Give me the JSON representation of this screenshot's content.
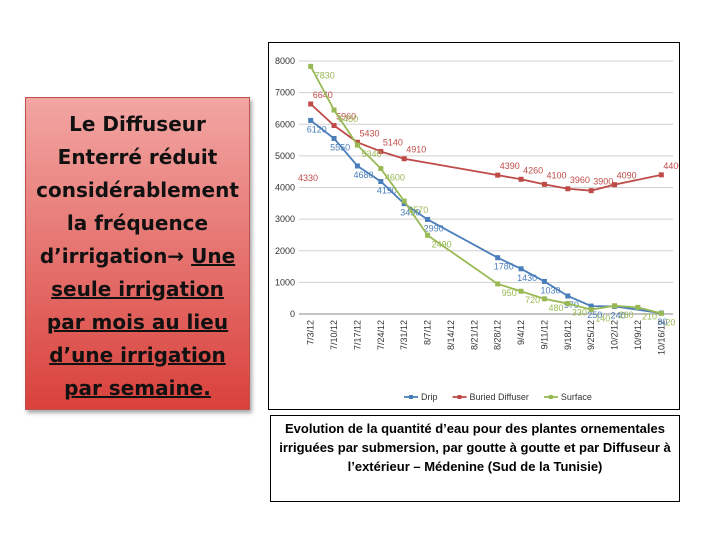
{
  "callout": {
    "plain": "Le Diffuseur Enterré réduit considérablement la fréquence d’irrigation→",
    "underlined": "Une seule irrigation par mois au lieu d’une irrigation par semaine."
  },
  "caption": "Evolution de la quantité d’eau pour des plantes ornementales irriguées par submersion, par goutte à goutte et par Diffuseur à l’extérieur – Médenine (Sud de la Tunisie)",
  "chart_data": {
    "type": "line",
    "categories": [
      "7/3/12",
      "7/10/12",
      "7/17/12",
      "7/24/12",
      "7/31/12",
      "8/7/12",
      "8/14/12",
      "8/21/12",
      "8/28/12",
      "9/4/12",
      "9/11/12",
      "9/18/12",
      "9/25/12",
      "10/2/12",
      "10/9/12",
      "10/16/12"
    ],
    "ylim": [
      0,
      8000
    ],
    "yticks": [
      0,
      1000,
      2000,
      3000,
      4000,
      5000,
      6000,
      7000,
      8000
    ],
    "grid": true,
    "annotations": [
      "4330"
    ],
    "series": [
      {
        "name": "Drip",
        "color": "#4a7ebb",
        "x": [
          "7/3/12",
          "7/10/12",
          "7/17/12",
          "7/24/12",
          "7/31/12",
          "8/7/12",
          "8/28/12",
          "9/4/12",
          "9/11/12",
          "9/18/12",
          "9/25/12",
          "10/2/12",
          "10/16/12"
        ],
        "values": [
          6120,
          5550,
          4680,
          4190,
          3490,
          2990,
          1780,
          1430,
          1030,
          570,
          250,
          240,
          30
        ]
      },
      {
        "name": "Buried Diffuser",
        "color": "#be4b48",
        "x": [
          "7/3/12",
          "7/10/12",
          "7/17/12",
          "7/24/12",
          "7/31/12",
          "8/28/12",
          "9/4/12",
          "9/11/12",
          "9/18/12",
          "9/25/12",
          "10/2/12",
          "10/16/12"
        ],
        "values": [
          6640,
          5960,
          5430,
          5140,
          4910,
          4390,
          4260,
          4100,
          3960,
          3900,
          4090,
          4400
        ]
      },
      {
        "name": "Surface",
        "color": "#98b954",
        "x": [
          "7/3/12",
          "7/10/12",
          "7/17/12",
          "7/24/12",
          "7/31/12",
          "8/7/12",
          "8/28/12",
          "9/4/12",
          "9/11/12",
          "9/18/12",
          "9/25/12",
          "10/2/12",
          "10/9/12",
          "10/16/12"
        ],
        "values": [
          7830,
          6450,
          5340,
          4600,
          3570,
          2490,
          950,
          720,
          480,
          330,
          140,
          260,
          210,
          20
        ]
      }
    ]
  }
}
